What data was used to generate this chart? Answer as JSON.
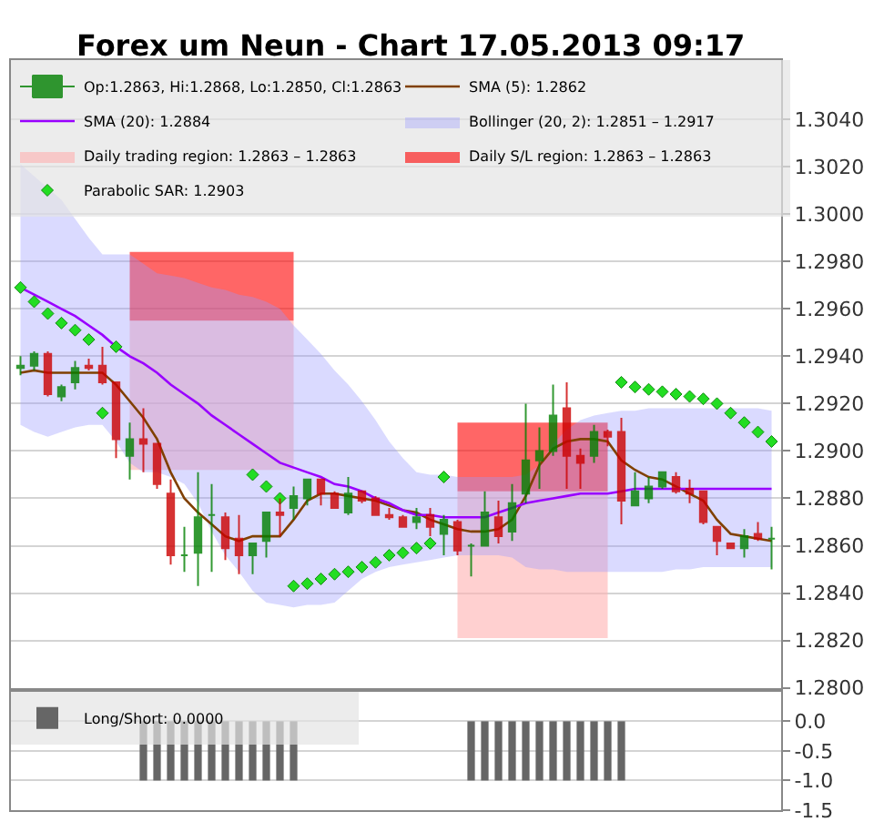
{
  "chart_data": [
    {
      "type": "candlestick",
      "title": "Forex um Neun - Chart 17.05.2013 09:17",
      "categories": [
        null,
        null,
        null,
        null,
        null,
        null,
        null,
        null,
        null,
        null,
        null,
        null,
        null,
        null,
        null,
        null,
        null,
        null,
        null,
        null,
        null,
        null,
        null,
        null,
        null,
        null,
        null,
        null,
        null,
        null,
        null,
        null,
        null,
        null,
        null,
        null,
        null,
        null,
        null,
        null,
        null,
        null,
        null,
        null,
        null,
        null,
        null,
        null,
        null,
        null,
        null,
        null,
        null,
        null,
        null,
        null
      ],
      "series": [
        {
          "type": "candlestick",
          "name": "Op:1.2863, Hi:1.2868, Lo:1.2850, Cl:1.2863",
          "ohlc": [
            [
              1.2935,
              1.294,
              1.2932,
              1.2936
            ],
            [
              1.2936,
              1.2942,
              1.2934,
              1.2941
            ],
            [
              1.2941,
              1.2942,
              1.2923,
              1.2924
            ],
            [
              1.2923,
              1.2928,
              1.2921,
              1.2927
            ],
            [
              1.2929,
              1.2938,
              1.2926,
              1.2935
            ],
            [
              1.2936,
              1.2939,
              1.2934,
              1.2935
            ],
            [
              1.2936,
              1.2944,
              1.2928,
              1.2929
            ],
            [
              1.2929,
              1.2929,
              1.2897,
              1.2905
            ],
            [
              1.2898,
              1.2912,
              1.2888,
              1.2905
            ],
            [
              1.2905,
              1.2918,
              1.2891,
              1.2903
            ],
            [
              1.2903,
              1.2903,
              1.2884,
              1.2886
            ],
            [
              1.2882,
              1.2888,
              1.2852,
              1.2856
            ],
            [
              1.2856,
              1.2868,
              1.2849,
              1.2856
            ],
            [
              1.2857,
              1.2891,
              1.2843,
              1.2872
            ],
            [
              1.2873,
              1.2886,
              1.2849,
              1.2873
            ],
            [
              1.2872,
              1.2874,
              1.2854,
              1.2859
            ],
            [
              1.2863,
              1.2873,
              1.2848,
              1.2856
            ],
            [
              1.2856,
              1.2861,
              1.2848,
              1.2861
            ],
            [
              1.2862,
              1.2874,
              1.2855,
              1.2874
            ],
            [
              1.2874,
              1.288,
              1.2864,
              1.2873
            ],
            [
              1.2876,
              1.2885,
              1.2871,
              1.2881
            ],
            [
              1.288,
              1.2888,
              1.2877,
              1.2888
            ],
            [
              1.2888,
              1.2888,
              1.2877,
              1.2882
            ],
            [
              1.2882,
              1.2883,
              1.2876,
              1.2876
            ],
            [
              1.2874,
              1.2889,
              1.2873,
              1.2882
            ],
            [
              1.2883,
              1.2883,
              1.2878,
              1.2879
            ],
            [
              1.288,
              1.2881,
              1.2873,
              1.2873
            ],
            [
              1.2873,
              1.2876,
              1.2871,
              1.2872
            ],
            [
              1.2872,
              1.2873,
              1.2868,
              1.2868
            ],
            [
              1.287,
              1.2876,
              1.2867,
              1.2872
            ],
            [
              1.2873,
              1.2876,
              1.2864,
              1.2868
            ],
            [
              1.2865,
              1.2873,
              1.2856,
              1.2871
            ],
            [
              1.287,
              1.2871,
              1.2856,
              1.2858
            ],
            [
              1.286,
              1.2861,
              1.2847,
              1.286
            ],
            [
              1.286,
              1.2883,
              1.286,
              1.2874
            ],
            [
              1.2872,
              1.2879,
              1.2861,
              1.2864
            ],
            [
              1.2866,
              1.2886,
              1.2862,
              1.2878
            ],
            [
              1.2882,
              1.292,
              1.2878,
              1.2896
            ],
            [
              1.2896,
              1.291,
              1.2884,
              1.29
            ],
            [
              1.29,
              1.2928,
              1.2898,
              1.2915
            ],
            [
              1.2918,
              1.2929,
              1.2884,
              1.2898
            ],
            [
              1.2898,
              1.2901,
              1.2884,
              1.2895
            ],
            [
              1.2898,
              1.2911,
              1.2895,
              1.2908
            ],
            [
              1.2908,
              1.2909,
              1.2902,
              1.2906
            ],
            [
              1.2908,
              1.2914,
              1.2869,
              1.2879
            ],
            [
              1.2877,
              1.2891,
              1.2877,
              1.2883
            ],
            [
              1.288,
              1.2889,
              1.2878,
              1.2885
            ],
            [
              1.2885,
              1.2891,
              1.2884,
              1.2891
            ],
            [
              1.2889,
              1.2891,
              1.2882,
              1.2883
            ],
            [
              1.2884,
              1.2888,
              1.2878,
              1.2882
            ],
            [
              1.2883,
              1.2883,
              1.2869,
              1.287
            ],
            [
              1.2868,
              1.2868,
              1.2856,
              1.2862
            ],
            [
              1.2861,
              1.2861,
              1.2859,
              1.2859
            ],
            [
              1.2859,
              1.2867,
              1.2855,
              1.2864
            ],
            [
              1.2865,
              1.287,
              1.2862,
              1.2863
            ],
            [
              1.2863,
              1.2868,
              1.285,
              1.2863
            ]
          ],
          "colors": [
            "#008000",
            "#008000",
            "#cc0000",
            "#008000",
            "#008000",
            "#cc0000",
            "#cc0000",
            "#cc0000",
            "#008000",
            "#cc0000",
            "#cc0000",
            "#cc0000",
            "#008000",
            "#008000",
            "#008000",
            "#cc0000",
            "#cc0000",
            "#008000",
            "#008000",
            "#cc0000",
            "#008000",
            "#008000",
            "#cc0000",
            "#cc0000",
            "#008000",
            "#cc0000",
            "#cc0000",
            "#cc0000",
            "#cc0000",
            "#008000",
            "#cc0000",
            "#008000",
            "#cc0000",
            "#008000",
            "#008000",
            "#cc0000",
            "#008000",
            "#008000",
            "#008000",
            "#008000",
            "#cc0000",
            "#cc0000",
            "#008000",
            "#cc0000",
            "#cc0000",
            "#008000",
            "#008000",
            "#008000",
            "#cc0000",
            "#cc0000",
            "#cc0000",
            "#cc0000",
            "#cc0000",
            "#008000",
            "#cc0000",
            "#008000"
          ]
        },
        {
          "type": "line",
          "name": "SMA (5): 1.2862",
          "color": "#804000",
          "values": [
            1.2933,
            1.2934,
            1.2933,
            1.2933,
            1.2933,
            1.2933,
            1.2933,
            1.2928,
            1.2921,
            1.2914,
            1.2905,
            1.2891,
            1.288,
            1.2874,
            1.2869,
            1.2864,
            1.2862,
            1.2864,
            1.2864,
            1.2864,
            1.2871,
            1.2879,
            1.2882,
            1.2882,
            1.2881,
            1.288,
            1.2879,
            1.2877,
            1.2875,
            1.2874,
            1.2871,
            1.2869,
            1.2867,
            1.2866,
            1.2866,
            1.2867,
            1.2871,
            1.2881,
            1.2894,
            1.2901,
            1.2904,
            1.2905,
            1.2905,
            1.2904,
            1.2896,
            1.2892,
            1.2889,
            1.2888,
            1.2885,
            1.2882,
            1.2879,
            1.2871,
            1.2865,
            1.2864,
            1.2863,
            1.2862
          ]
        },
        {
          "type": "line",
          "name": "SMA (20): 1.2884",
          "color": "#9900ff",
          "values": [
            1.2969,
            1.2966,
            1.2963,
            1.296,
            1.2957,
            1.2953,
            1.2949,
            1.2944,
            1.294,
            1.2937,
            1.2933,
            1.2928,
            1.2924,
            1.292,
            1.2915,
            1.2911,
            1.2907,
            1.2903,
            1.2899,
            1.2895,
            1.2893,
            1.2891,
            1.2889,
            1.2886,
            1.2885,
            1.2883,
            1.288,
            1.2878,
            1.2875,
            1.2873,
            1.2873,
            1.2872,
            1.2872,
            1.2872,
            1.2872,
            1.2874,
            1.2876,
            1.2878,
            1.2879,
            1.288,
            1.2881,
            1.2882,
            1.2882,
            1.2882,
            1.2883,
            1.2884,
            1.2884,
            1.2884,
            1.2884,
            1.2884,
            1.2884,
            1.2884,
            1.2884,
            1.2884,
            1.2884,
            1.2884
          ]
        },
        {
          "type": "line",
          "name": "Bollinger (20, 2): 1.2851 – 1.2917",
          "color": "#9999ff",
          "values": [
            null,
            null,
            null,
            null,
            null,
            null,
            null,
            null,
            null,
            null,
            null,
            null,
            null,
            null,
            null,
            null,
            null,
            null,
            null,
            null,
            null,
            null,
            null,
            null,
            null,
            null,
            null,
            null,
            null,
            null,
            null,
            null,
            null,
            null,
            null,
            null,
            null,
            null,
            null,
            null,
            null,
            null,
            null,
            null,
            null,
            null,
            null,
            null,
            null,
            null,
            null,
            null,
            null,
            null,
            null,
            null
          ],
          "upper": [
            1.3021,
            1.3016,
            1.3011,
            1.3006,
            1.2998,
            1.299,
            1.2983,
            1.2983,
            1.2983,
            1.2979,
            1.2975,
            1.2974,
            1.2973,
            1.2971,
            1.2969,
            1.2968,
            1.2966,
            1.2965,
            1.2963,
            1.296,
            1.2953,
            1.2947,
            1.2941,
            1.2934,
            1.2928,
            1.2921,
            1.2913,
            1.2904,
            1.2897,
            1.2891,
            1.289,
            1.289,
            1.2889,
            1.2889,
            1.2889,
            1.2889,
            1.2889,
            1.289,
            1.2894,
            1.2903,
            1.2909,
            1.2913,
            1.2915,
            1.2916,
            1.2917,
            1.2917,
            1.2918,
            1.2918,
            1.2918,
            1.2918,
            1.2918,
            1.2918,
            1.2918,
            1.2918,
            1.2918,
            1.2917
          ],
          "lower": [
            1.2911,
            1.2908,
            1.2906,
            1.2908,
            1.291,
            1.2911,
            1.2911,
            1.2904,
            1.2895,
            1.2891,
            1.2891,
            1.2889,
            1.2886,
            1.2878,
            1.2866,
            1.2856,
            1.2849,
            1.2841,
            1.2836,
            1.2835,
            1.2834,
            1.2835,
            1.2835,
            1.2836,
            1.2841,
            1.2846,
            1.2849,
            1.2851,
            1.2852,
            1.2853,
            1.2854,
            1.2855,
            1.2856,
            1.2856,
            1.2856,
            1.2856,
            1.2855,
            1.2851,
            1.285,
            1.285,
            1.2849,
            1.2849,
            1.2849,
            1.2849,
            1.2849,
            1.2849,
            1.2849,
            1.2849,
            1.285,
            1.285,
            1.2851,
            1.2851,
            1.2851,
            1.2851,
            1.2851,
            1.2851
          ]
        },
        {
          "type": "line",
          "name": "Daily trading region: 1.2863 – 1.2863",
          "color": "#ffb0b0",
          "values": [
            null,
            null,
            null,
            null,
            null,
            null,
            null,
            null,
            null,
            null,
            null,
            null,
            null,
            null,
            null,
            null,
            null,
            null,
            null,
            null,
            null,
            null,
            null,
            null,
            null,
            null,
            null,
            null,
            null,
            null,
            null,
            null,
            null,
            null,
            null,
            null,
            null,
            null,
            null,
            null,
            null,
            null,
            null,
            null,
            null,
            null,
            null,
            null,
            null,
            null,
            null,
            null,
            null,
            null,
            null,
            null
          ],
          "upper": [
            null,
            null,
            null,
            null,
            null,
            null,
            null,
            null,
            1.2955,
            1.2955,
            1.2955,
            1.2955,
            1.2955,
            1.2955,
            1.2955,
            1.2955,
            1.2955,
            1.2955,
            1.2955,
            1.2955,
            1.2955,
            null,
            null,
            null,
            null,
            null,
            null,
            null,
            null,
            null,
            null,
            null,
            1.2883,
            1.2883,
            1.2883,
            1.2883,
            1.2883,
            1.2883,
            1.2883,
            1.2883,
            1.2883,
            1.2883,
            1.2883,
            1.2883,
            null,
            null,
            null,
            null,
            null,
            null,
            null,
            null,
            null,
            null,
            null,
            null
          ],
          "lower": [
            null,
            null,
            null,
            null,
            null,
            null,
            null,
            null,
            1.2892,
            1.2892,
            1.2892,
            1.2892,
            1.2892,
            1.2892,
            1.2892,
            1.2892,
            1.2892,
            1.2892,
            1.2892,
            1.2892,
            1.2892,
            null,
            null,
            null,
            null,
            null,
            null,
            null,
            null,
            null,
            null,
            null,
            1.2821,
            1.2821,
            1.2821,
            1.2821,
            1.2821,
            1.2821,
            1.2821,
            1.2821,
            1.2821,
            1.2821,
            1.2821,
            1.2821,
            null,
            null,
            null,
            null,
            null,
            null,
            null,
            null,
            null,
            null,
            null,
            null
          ]
        },
        {
          "type": "line",
          "name": "Daily S/L region: 1.2863 – 1.2863",
          "color": "#ff0000",
          "values": [
            null,
            null,
            null,
            null,
            null,
            null,
            null,
            null,
            null,
            null,
            null,
            null,
            null,
            null,
            null,
            null,
            null,
            null,
            null,
            null,
            null,
            null,
            null,
            null,
            null,
            null,
            null,
            null,
            null,
            null,
            null,
            null,
            null,
            null,
            null,
            null,
            null,
            null,
            null,
            null,
            null,
            null,
            null,
            null,
            null,
            null,
            null,
            null,
            null,
            null,
            null,
            null,
            null,
            null,
            null,
            null
          ],
          "upper": [
            null,
            null,
            null,
            null,
            null,
            null,
            null,
            null,
            1.2984,
            1.2984,
            1.2984,
            1.2984,
            1.2984,
            1.2984,
            1.2984,
            1.2984,
            1.2984,
            1.2984,
            1.2984,
            1.2984,
            1.2984,
            null,
            null,
            null,
            null,
            null,
            null,
            null,
            null,
            null,
            null,
            null,
            1.2912,
            1.2912,
            1.2912,
            1.2912,
            1.2912,
            1.2912,
            1.2912,
            1.2912,
            1.2912,
            1.2912,
            1.2912,
            1.2912,
            null,
            null,
            null,
            null,
            null,
            null,
            null,
            null,
            null,
            null,
            null,
            null
          ],
          "lower": [
            null,
            null,
            null,
            null,
            null,
            null,
            null,
            null,
            1.2955,
            1.2955,
            1.2955,
            1.2955,
            1.2955,
            1.2955,
            1.2955,
            1.2955,
            1.2955,
            1.2955,
            1.2955,
            1.2955,
            1.2955,
            null,
            null,
            null,
            null,
            null,
            null,
            null,
            null,
            null,
            null,
            null,
            1.2883,
            1.2883,
            1.2883,
            1.2883,
            1.2883,
            1.2883,
            1.2883,
            1.2883,
            1.2883,
            1.2883,
            1.2883,
            1.2883,
            null,
            null,
            null,
            null,
            null,
            null,
            null,
            null,
            null,
            null,
            null,
            null
          ]
        },
        {
          "type": "scatter",
          "name": "Parabolic SAR: 1.2903",
          "color": "#22dd22",
          "marker": "diamond",
          "values": [
            1.2969,
            1.2963,
            1.2958,
            1.2954,
            1.2951,
            1.2947,
            1.2916,
            1.2944,
            null,
            null,
            null,
            null,
            null,
            null,
            null,
            null,
            null,
            1.289,
            1.2885,
            1.288,
            1.2843,
            1.2844,
            1.2846,
            1.2848,
            1.2849,
            1.2851,
            1.2853,
            1.2856,
            1.2857,
            1.2859,
            1.2861,
            1.2889,
            null,
            null,
            null,
            null,
            null,
            null,
            null,
            null,
            null,
            null,
            null,
            null,
            1.2929,
            1.2927,
            1.2926,
            1.2925,
            1.2924,
            1.2923,
            1.2922,
            1.292,
            1.2916,
            1.2912,
            1.2908,
            1.2904
          ]
        }
      ],
      "ylim": [
        1.28,
        1.3065
      ],
      "yticks": [
        {
          "value": 1.28,
          "label": "1.2800"
        },
        {
          "value": 1.282,
          "label": "1.2820"
        },
        {
          "value": 1.284,
          "label": "1.2840"
        },
        {
          "value": 1.286,
          "label": "1.2860"
        },
        {
          "value": 1.288,
          "label": "1.2880"
        },
        {
          "value": 1.29,
          "label": "1.2900"
        },
        {
          "value": 1.292,
          "label": "1.2920"
        },
        {
          "value": 1.294,
          "label": "1.2940"
        },
        {
          "value": 1.296,
          "label": "1.2960"
        },
        {
          "value": 1.298,
          "label": "1.2980"
        },
        {
          "value": 1.3,
          "label": "1.3000"
        },
        {
          "value": 1.302,
          "label": "1.3020"
        },
        {
          "value": 1.304,
          "label": "1.3040"
        }
      ],
      "grid": "y",
      "legend": "top left",
      "tick_labels": "y"
    },
    {
      "type": "bar",
      "categories": [
        null,
        null,
        null,
        null,
        null,
        null,
        null,
        null,
        null,
        null,
        null,
        null,
        null,
        null,
        null,
        null,
        null,
        null,
        null,
        null,
        null,
        null,
        null,
        null,
        null,
        null,
        null,
        null,
        null,
        null,
        null,
        null,
        null,
        null,
        null,
        null,
        null,
        null,
        null,
        null,
        null,
        null,
        null,
        null,
        null,
        null,
        null,
        null,
        null,
        null,
        null,
        null,
        null,
        null,
        null,
        null
      ],
      "series": [
        {
          "name": "Long/Short: 0.0000",
          "color": "#666666",
          "values": [
            null,
            null,
            null,
            null,
            null,
            null,
            null,
            null,
            null,
            -1,
            -1,
            -1,
            -1,
            -1,
            -1,
            -1,
            -1,
            -1,
            -1,
            -1,
            -1,
            null,
            null,
            null,
            null,
            null,
            null,
            null,
            null,
            null,
            null,
            null,
            null,
            -1,
            -1,
            -1,
            -1,
            -1,
            -1,
            -1,
            -1,
            -1,
            -1,
            -1,
            -1,
            null,
            null,
            null,
            null,
            null,
            null,
            null,
            null,
            null,
            null,
            null
          ]
        }
      ],
      "ylim": [
        -1.5,
        0.5
      ],
      "yticks": [
        {
          "value": 0,
          "label": "0.0"
        },
        {
          "value": -0.5,
          "label": "-0.5"
        },
        {
          "value": -1,
          "label": "-1.0"
        },
        {
          "value": -1.5,
          "label": "-1.5"
        }
      ],
      "grid": "y",
      "legend": "top left",
      "tick_labels": "y"
    }
  ]
}
